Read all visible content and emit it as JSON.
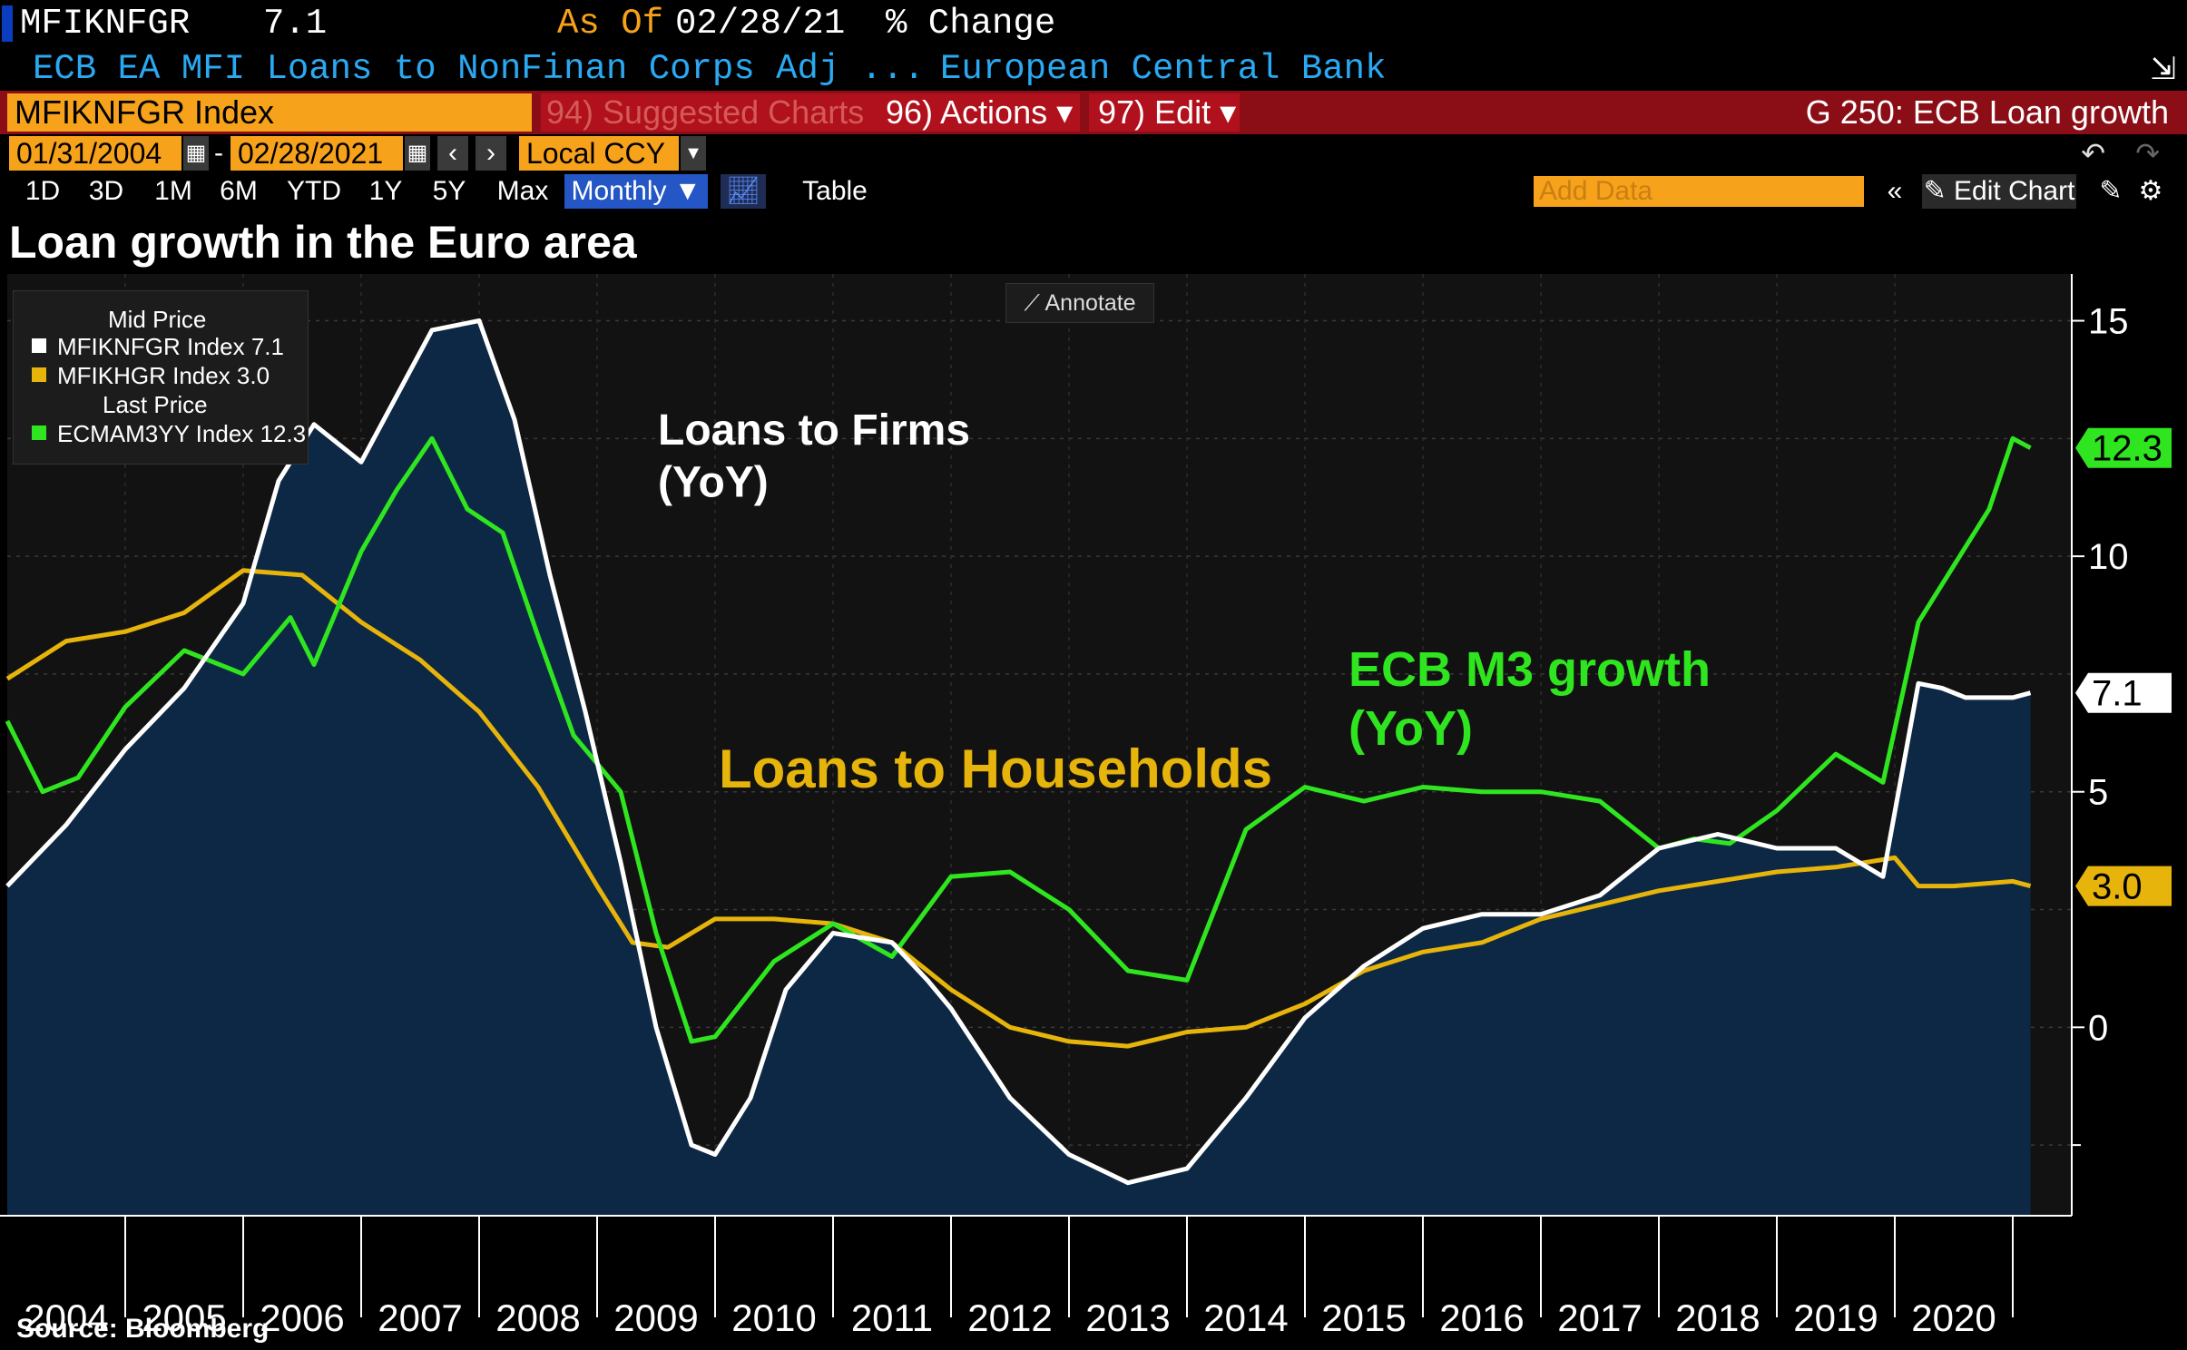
{
  "header": {
    "ticker": "MFIKNFGR",
    "value": "7.1",
    "as_of_label": "As Of",
    "as_of_date": "02/28/21",
    "change_label": "% Change",
    "description": "ECB EA MFI Loans to NonFinan Corps Adj ...",
    "source_name": "European Central Bank"
  },
  "toolbar": {
    "security": "MFIKNFGR Index",
    "suggested": "94) Suggested Charts",
    "actions": "96) Actions ▾",
    "edit": "97) Edit ▾",
    "chart_name": "G 250: ECB Loan growth",
    "start_date": "01/31/2004",
    "end_date": "02/28/2021",
    "currency": "Local CCY",
    "periods": [
      "1D",
      "3D",
      "1M",
      "6M",
      "YTD",
      "1Y",
      "5Y",
      "Max"
    ],
    "frequency": "Monthly ▼",
    "table_label": "Table",
    "add_data_placeholder": "Add Data",
    "edit_chart": "Edit Chart"
  },
  "colors": {
    "firms": "#ffffff",
    "households": "#e6b40a",
    "m3": "#2fe51f",
    "area": "#0d2845",
    "accent_orange": "#f7a21b",
    "bar_red": "#8b0e16"
  },
  "legend": {
    "heading1": "Mid Price",
    "item1": "MFIKNFGR Index 7.1",
    "item2": "MFIKHGR Index 3.0",
    "heading2": "Last Price",
    "item3": "ECMAM3YY Index 12.3"
  },
  "annotate_label": "Annotate",
  "source": "Source: Bloomberg",
  "chart_data": {
    "type": "line",
    "title": "Loan growth in the Euro area",
    "x_ticks": [
      "2004",
      "2005",
      "2006",
      "2007",
      "2008",
      "2009",
      "2010",
      "2011",
      "2012",
      "2013",
      "2014",
      "2015",
      "2016",
      "2017",
      "2018",
      "2019",
      "2020"
    ],
    "x_range": [
      2004.0,
      2021.5
    ],
    "y_range": [
      -4.0,
      15.8
    ],
    "y_ticks": [
      15,
      10,
      5,
      0
    ],
    "y_tick_labels": [
      "15",
      "10",
      "5",
      "0"
    ],
    "grid": true,
    "legend_position": "top-left",
    "series": [
      {
        "name": "MFIKNFGR Index",
        "label": "Loans to Firms (YoY)",
        "last_value": 7.1,
        "last_label": "7.1",
        "x": [
          2004.0,
          2004.5,
          2005.0,
          2005.5,
          2006.0,
          2006.3,
          2006.6,
          2007.0,
          2007.3,
          2007.6,
          2008.0,
          2008.3,
          2008.6,
          2008.9,
          2009.2,
          2009.5,
          2009.8,
          2010.0,
          2010.3,
          2010.6,
          2011.0,
          2011.5,
          2011.8,
          2012.0,
          2012.5,
          2013.0,
          2013.5,
          2014.0,
          2014.5,
          2015.0,
          2015.5,
          2016.0,
          2016.5,
          2017.0,
          2017.5,
          2018.0,
          2018.5,
          2019.0,
          2019.5,
          2019.9,
          2020.2,
          2020.4,
          2020.6,
          2021.0,
          2021.15
        ],
        "values": [
          3.0,
          4.3,
          5.9,
          7.2,
          9.0,
          11.6,
          12.8,
          12.0,
          13.4,
          14.8,
          15.0,
          12.9,
          9.6,
          6.7,
          3.5,
          0.0,
          -2.5,
          -2.7,
          -1.5,
          0.8,
          2.0,
          1.8,
          1.0,
          0.4,
          -1.5,
          -2.7,
          -3.3,
          -3.0,
          -1.5,
          0.2,
          1.3,
          2.1,
          2.4,
          2.4,
          2.8,
          3.8,
          4.1,
          3.8,
          3.8,
          3.2,
          7.3,
          7.2,
          7.0,
          7.0,
          7.1
        ]
      },
      {
        "name": "MFIKHGR Index",
        "label": "Loans to Households",
        "last_value": 3.0,
        "last_label": "3.0",
        "x": [
          2004.0,
          2004.5,
          2005.0,
          2005.5,
          2006.0,
          2006.5,
          2007.0,
          2007.5,
          2008.0,
          2008.5,
          2009.0,
          2009.3,
          2009.6,
          2010.0,
          2010.5,
          2011.0,
          2011.5,
          2012.0,
          2012.5,
          2013.0,
          2013.5,
          2014.0,
          2014.5,
          2015.0,
          2015.5,
          2016.0,
          2016.5,
          2017.0,
          2017.5,
          2018.0,
          2018.5,
          2019.0,
          2019.5,
          2020.0,
          2020.2,
          2020.5,
          2021.0,
          2021.15
        ],
        "values": [
          7.4,
          8.2,
          8.4,
          8.8,
          9.7,
          9.6,
          8.6,
          7.8,
          6.7,
          5.1,
          3.0,
          1.8,
          1.7,
          2.3,
          2.3,
          2.2,
          1.8,
          0.8,
          0.0,
          -0.3,
          -0.4,
          -0.1,
          0.0,
          0.5,
          1.2,
          1.6,
          1.8,
          2.3,
          2.6,
          2.9,
          3.1,
          3.3,
          3.4,
          3.6,
          3.0,
          3.0,
          3.1,
          3.0
        ]
      },
      {
        "name": "ECMAM3YY Index",
        "label": "ECB M3 growth (YoY)",
        "last_value": 12.3,
        "last_label": "12.3",
        "x": [
          2004.0,
          2004.3,
          2004.6,
          2005.0,
          2005.5,
          2006.0,
          2006.4,
          2006.6,
          2007.0,
          2007.3,
          2007.6,
          2007.9,
          2008.2,
          2008.5,
          2008.8,
          2009.2,
          2009.5,
          2009.8,
          2010.0,
          2010.5,
          2011.0,
          2011.5,
          2012.0,
          2012.5,
          2013.0,
          2013.5,
          2014.0,
          2014.5,
          2015.0,
          2015.5,
          2016.0,
          2016.5,
          2017.0,
          2017.5,
          2018.0,
          2018.3,
          2018.6,
          2019.0,
          2019.5,
          2019.9,
          2020.2,
          2020.5,
          2020.8,
          2021.0,
          2021.15
        ],
        "values": [
          6.5,
          5.0,
          5.3,
          6.8,
          8.0,
          7.5,
          8.7,
          7.7,
          10.1,
          11.4,
          12.5,
          11.0,
          10.5,
          8.3,
          6.2,
          5.0,
          2.0,
          -0.3,
          -0.2,
          1.4,
          2.2,
          1.5,
          3.2,
          3.3,
          2.5,
          1.2,
          1.0,
          4.2,
          5.1,
          4.8,
          5.1,
          5.0,
          5.0,
          4.8,
          3.8,
          4.0,
          3.9,
          4.6,
          5.8,
          5.2,
          8.6,
          9.8,
          11.0,
          12.5,
          12.3
        ]
      }
    ],
    "annotations": [
      {
        "text_lines": [
          "Loans to Firms",
          "(YoY)"
        ],
        "series": 0
      },
      {
        "text_lines": [
          "Loans to Households"
        ],
        "series": 1
      },
      {
        "text_lines": [
          "ECB M3 growth",
          "(YoY)"
        ],
        "series": 2
      }
    ]
  }
}
